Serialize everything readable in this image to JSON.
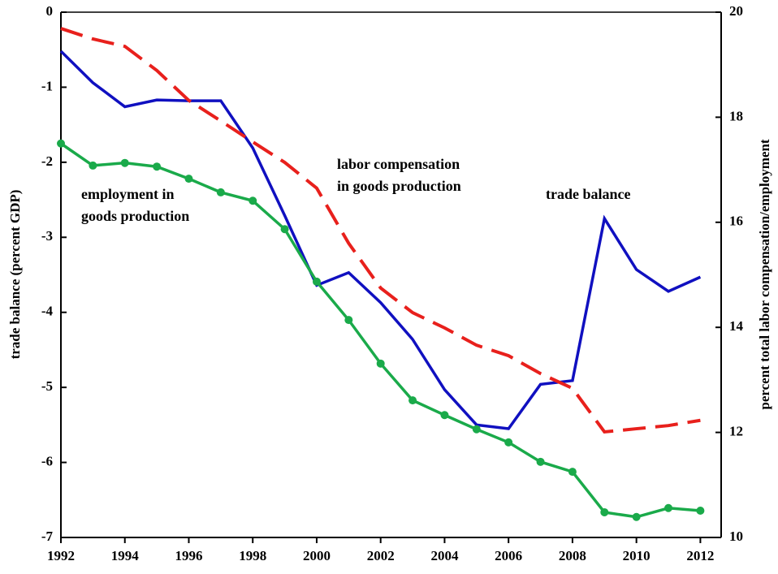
{
  "chart_data": {
    "type": "line",
    "ylabel": "trade balance (percent GDP)",
    "y2label": "percent total labor compensation/employment",
    "x": [
      1992,
      1993,
      1994,
      1995,
      1996,
      1997,
      1998,
      1999,
      2000,
      2001,
      2002,
      2003,
      2004,
      2005,
      2006,
      2007,
      2008,
      2009,
      2010,
      2011,
      2012
    ],
    "xlim": [
      1992,
      2012.65
    ],
    "xticks": [
      1992,
      1994,
      1996,
      1998,
      2000,
      2002,
      2004,
      2006,
      2008,
      2010,
      2012
    ],
    "ylim": [
      -7,
      0
    ],
    "yticks": [
      0,
      -1,
      -2,
      -3,
      -4,
      -5,
      -6,
      -7
    ],
    "y2lim": [
      10,
      20
    ],
    "y2ticks": [
      10,
      12,
      14,
      16,
      18,
      20
    ],
    "series": [
      {
        "color": "#1010c0",
        "style": "solid",
        "marker": false,
        "values": [
          -0.52,
          -0.94,
          -1.26,
          -1.17,
          -1.18,
          -1.18,
          -1.81,
          -2.71,
          -3.64,
          -3.47,
          -3.87,
          -4.36,
          -5.03,
          -5.5,
          -5.55,
          -4.96,
          -4.91,
          -2.75,
          -3.43,
          -3.72,
          -3.53
        ]
      },
      {
        "color": "#e8201c",
        "style": "dashed",
        "marker": false,
        "axis": "y2",
        "values": [
          19.69,
          19.49,
          19.35,
          18.89,
          18.32,
          17.93,
          17.53,
          17.14,
          16.65,
          15.6,
          14.75,
          14.28,
          13.99,
          13.66,
          13.46,
          13.12,
          12.84,
          12.01,
          12.07,
          12.13,
          12.23
        ]
      },
      {
        "color": "#1aaa4a",
        "style": "solid",
        "marker": true,
        "axis": "y2",
        "values": [
          17.5,
          17.08,
          17.13,
          17.06,
          16.83,
          16.57,
          16.41,
          15.87,
          14.87,
          14.14,
          13.31,
          12.61,
          12.33,
          12.06,
          11.81,
          11.44,
          11.25,
          10.48,
          10.39,
          10.56,
          10.51
        ]
      }
    ],
    "annotations": [
      [
        "employment in",
        "goods production"
      ],
      [
        "labor compensation",
        "in goods production"
      ],
      [
        "trade balance"
      ]
    ]
  }
}
